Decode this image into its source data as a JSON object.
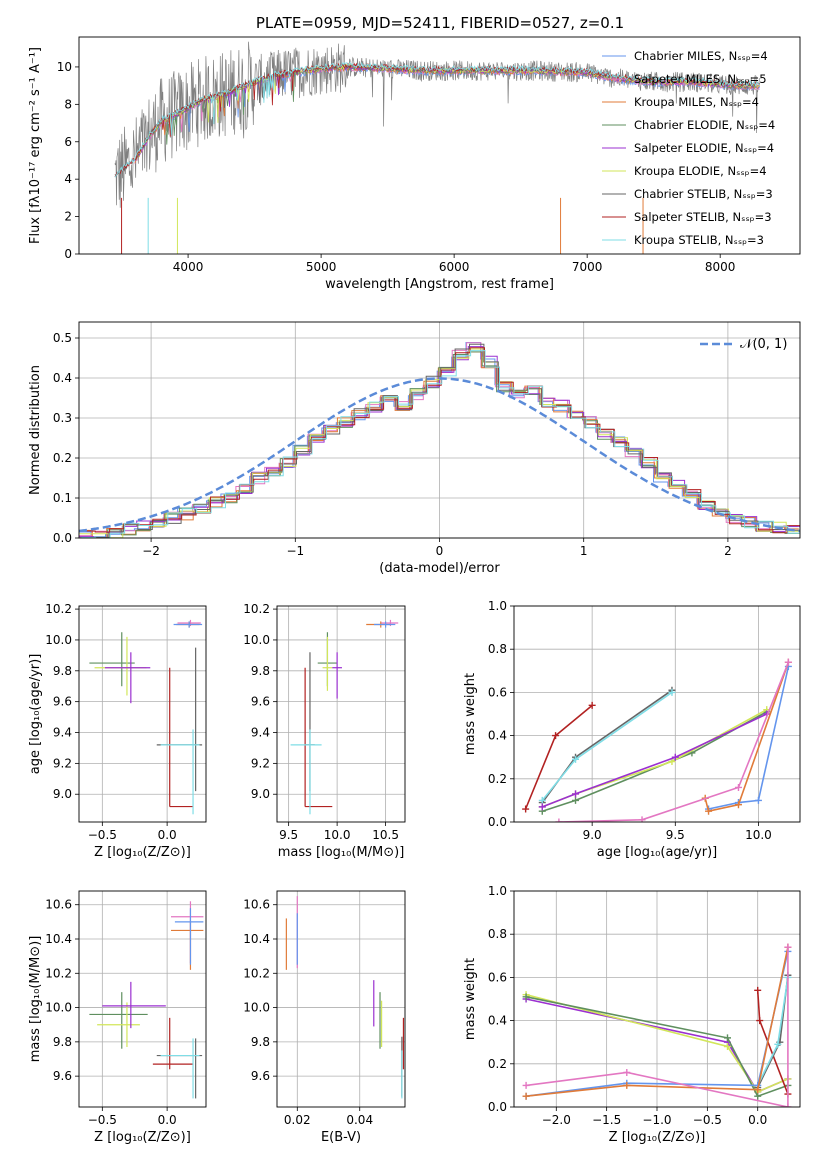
{
  "colors": {
    "Chabrier MILES": "#6495ed",
    "Salpeter MILES": "#e377c2",
    "Kroupa MILES": "#e07b39",
    "Chabrier ELODIE": "#5f8f5f",
    "Salpeter ELODIE": "#9b30d0",
    "Kroupa ELODIE": "#d2e65a",
    "Chabrier STELIB": "#666666",
    "Salpeter STELIB": "#b22222",
    "Kroupa STELIB": "#7fdde6",
    "data": "#808080",
    "normal": "#5b8bd8"
  },
  "chart_data": [
    {
      "id": "spectrum",
      "type": "line",
      "title": "PLATE=0959, MJD=52411, FIBERID=0527, z=0.1",
      "xlabel": "wavelength [Angstrom, rest frame]",
      "ylabel": "Flux [fλ10⁻¹⁷ erg cm⁻² s⁻¹ A⁻¹]",
      "xlim": [
        3180,
        8600
      ],
      "ylim": [
        0,
        11.6
      ],
      "xticks": [
        4000,
        5000,
        6000,
        7000,
        8000
      ],
      "yticks": [
        0,
        2,
        4,
        6,
        8,
        10
      ],
      "grid": false,
      "legend_position": "top-right",
      "legend": [
        "Chabrier MILES, Nₛₛₚ=4",
        "Salpeter MILES, Nₛₛₚ=5",
        "Kroupa MILES, Nₛₛₚ=4",
        "Chabrier ELODIE, Nₛₛₚ=4",
        "Salpeter ELODIE, Nₛₛₚ=4",
        "Kroupa ELODIE, Nₛₛₚ=4",
        "Chabrier STELIB, Nₛₛₚ=3",
        "Salpeter STELIB, Nₛₛₚ=3",
        "Kroupa STELIB, Nₛₛₚ=3"
      ],
      "continuum": [
        [
          3450,
          4.1
        ],
        [
          3600,
          5.0
        ],
        [
          3700,
          6.2
        ],
        [
          3800,
          7.1
        ],
        [
          3950,
          7.6
        ],
        [
          4100,
          8.2
        ],
        [
          4300,
          8.6
        ],
        [
          4500,
          9.2
        ],
        [
          4700,
          9.6
        ],
        [
          5000,
          9.9
        ],
        [
          5200,
          10.0
        ],
        [
          5500,
          9.9
        ],
        [
          5800,
          9.8
        ],
        [
          6000,
          9.8
        ],
        [
          6300,
          9.8
        ],
        [
          6600,
          9.8
        ],
        [
          7000,
          9.7
        ],
        [
          7200,
          9.4
        ],
        [
          7500,
          9.2
        ],
        [
          7800,
          9.2
        ],
        [
          8100,
          9.0
        ],
        [
          8300,
          9.0
        ]
      ]
    },
    {
      "id": "residuals",
      "type": "bar",
      "xlabel": "(data-model)/error",
      "ylabel": "Normed distribution",
      "xlim": [
        -2.5,
        2.5
      ],
      "ylim": [
        0,
        0.54
      ],
      "xticks": [
        -2,
        -1,
        0,
        1,
        2
      ],
      "yticks": [
        0.0,
        0.1,
        0.2,
        0.3,
        0.4,
        0.5
      ],
      "grid": true,
      "legend_position": "top-right",
      "legend": [
        "𝒩(0, 1)"
      ],
      "bin_width": 0.1,
      "bins_start": -2.5,
      "histogram": [
        0.005,
        0.01,
        0.015,
        0.022,
        0.03,
        0.04,
        0.05,
        0.06,
        0.075,
        0.09,
        0.1,
        0.12,
        0.15,
        0.17,
        0.19,
        0.22,
        0.25,
        0.27,
        0.29,
        0.31,
        0.33,
        0.35,
        0.33,
        0.36,
        0.39,
        0.42,
        0.46,
        0.48,
        0.44,
        0.38,
        0.36,
        0.37,
        0.34,
        0.33,
        0.31,
        0.29,
        0.26,
        0.24,
        0.21,
        0.19,
        0.15,
        0.13,
        0.11,
        0.08,
        0.06,
        0.05,
        0.04,
        0.03,
        0.025,
        0.02
      ]
    },
    {
      "id": "age_vs_Z",
      "type": "scatter",
      "xlabel": "Z [log₁₀(Z/Z⊙)]",
      "ylabel": "age  [log₁₀(age/yr)]",
      "xlim": [
        -0.68,
        0.3
      ],
      "ylim": [
        8.82,
        10.22
      ],
      "xticks": [
        -0.5,
        0.0
      ],
      "yticks": [
        9.0,
        9.2,
        9.4,
        9.6,
        9.8,
        10.0,
        10.2
      ],
      "grid": true,
      "points": [
        {
          "model": "Chabrier ELODIE",
          "x": -0.35,
          "y": 9.85,
          "xerr": [
            0.25,
            0.1
          ],
          "yerr": [
            0.15,
            0.2
          ]
        },
        {
          "model": "Kroupa ELODIE",
          "x": -0.31,
          "y": 9.82,
          "xerr": [
            0.25,
            0.15
          ],
          "yerr": [
            0.18,
            0.2
          ]
        },
        {
          "model": "Salpeter ELODIE",
          "x": -0.28,
          "y": 9.82,
          "xerr": [
            0.2,
            0.15
          ],
          "yerr": [
            0.23,
            0.1
          ]
        },
        {
          "model": "Salpeter STELIB",
          "x": 0.02,
          "y": 8.92,
          "xerr": [
            0.0,
            0.18
          ],
          "yerr": [
            0.0,
            0.9
          ]
        },
        {
          "model": "Chabrier STELIB",
          "x": 0.22,
          "y": 9.32,
          "xerr": [
            0.3,
            0.05
          ],
          "yerr": [
            0.3,
            0.63
          ]
        },
        {
          "model": "Kroupa STELIB",
          "x": 0.2,
          "y": 9.32,
          "xerr": [
            0.25,
            0.05
          ],
          "yerr": [
            0.45,
            0.1
          ]
        },
        {
          "model": "Salpeter MILES",
          "x": 0.18,
          "y": 10.11,
          "xerr": [
            0.1,
            0.08
          ],
          "yerr": [
            0.02,
            0.02
          ]
        },
        {
          "model": "Kroupa MILES",
          "x": 0.17,
          "y": 10.1,
          "xerr": [
            0.1,
            0.08
          ],
          "yerr": [
            0.02,
            0.02
          ]
        },
        {
          "model": "Chabrier MILES",
          "x": 0.17,
          "y": 10.1,
          "xerr": [
            0.12,
            0.1
          ],
          "yerr": [
            0.02,
            0.02
          ]
        }
      ]
    },
    {
      "id": "age_vs_mass",
      "type": "scatter",
      "xlabel": "mass [log₁₀(M/M⊙)]",
      "xlim": [
        9.38,
        10.7
      ],
      "ylim": [
        8.82,
        10.22
      ],
      "xticks": [
        9.5,
        10.0,
        10.5
      ],
      "yticks": [
        9.0,
        9.2,
        9.4,
        9.6,
        9.8,
        10.0,
        10.2
      ],
      "grid": true,
      "points": [
        {
          "model": "Chabrier ELODIE",
          "x": 9.9,
          "y": 9.85,
          "xerr": [
            0.1,
            0.1
          ],
          "yerr": [
            0.15,
            0.2
          ]
        },
        {
          "model": "Kroupa ELODIE",
          "x": 9.9,
          "y": 9.82,
          "xerr": [
            0.05,
            0.05
          ],
          "yerr": [
            0.15,
            0.2
          ]
        },
        {
          "model": "Salpeter ELODIE",
          "x": 10.0,
          "y": 9.82,
          "xerr": [
            0.05,
            0.05
          ],
          "yerr": [
            0.2,
            0.1
          ]
        },
        {
          "model": "Salpeter STELIB",
          "x": 9.67,
          "y": 8.92,
          "xerr": [
            0.0,
            0.28
          ],
          "yerr": [
            0.0,
            0.9
          ]
        },
        {
          "model": "Chabrier STELIB",
          "x": 9.72,
          "y": 9.32,
          "xerr": [
            0.05,
            0.05
          ],
          "yerr": [
            0.3,
            0.6
          ]
        },
        {
          "model": "Kroupa STELIB",
          "x": 9.72,
          "y": 9.32,
          "xerr": [
            0.2,
            0.12
          ],
          "yerr": [
            0.45,
            0.1
          ]
        },
        {
          "model": "Salpeter MILES",
          "x": 10.55,
          "y": 10.11,
          "xerr": [
            0.1,
            0.08
          ],
          "yerr": [
            0.02,
            0.02
          ]
        },
        {
          "model": "Kroupa MILES",
          "x": 10.45,
          "y": 10.1,
          "xerr": [
            0.15,
            0.1
          ],
          "yerr": [
            0.02,
            0.02
          ]
        },
        {
          "model": "Chabrier MILES",
          "x": 10.5,
          "y": 10.1,
          "xerr": [
            0.12,
            0.1
          ],
          "yerr": [
            0.02,
            0.02
          ]
        }
      ]
    },
    {
      "id": "massweight_vs_age",
      "type": "line",
      "xlabel": "age  [log₁₀(age/yr)]",
      "ylabel": "mass weight",
      "xlim": [
        8.53,
        10.25
      ],
      "ylim": [
        0,
        1.0
      ],
      "xticks": [
        9.0,
        9.5,
        10.0
      ],
      "yticks": [
        0.0,
        0.2,
        0.4,
        0.6,
        0.8,
        1.0
      ],
      "grid": true,
      "series": [
        {
          "model": "Salpeter STELIB",
          "x": [
            8.6,
            8.78,
            9.0
          ],
          "y": [
            0.06,
            0.4,
            0.54
          ]
        },
        {
          "model": "Chabrier STELIB",
          "x": [
            8.7,
            8.9,
            9.48
          ],
          "y": [
            0.09,
            0.3,
            0.61
          ]
        },
        {
          "model": "Kroupa STELIB",
          "x": [
            8.7,
            8.9,
            9.48
          ],
          "y": [
            0.1,
            0.29,
            0.6
          ]
        },
        {
          "model": "Chabrier ELODIE",
          "x": [
            8.7,
            8.9,
            9.6,
            10.05
          ],
          "y": [
            0.05,
            0.1,
            0.32,
            0.51
          ]
        },
        {
          "model": "Kroupa ELODIE",
          "x": [
            8.7,
            8.9,
            9.48,
            10.05
          ],
          "y": [
            0.07,
            0.13,
            0.28,
            0.52
          ]
        },
        {
          "model": "Salpeter ELODIE",
          "x": [
            8.7,
            8.9,
            9.5,
            10.05
          ],
          "y": [
            0.07,
            0.13,
            0.3,
            0.5
          ]
        },
        {
          "model": "Chabrier MILES",
          "x": [
            9.7,
            9.88,
            10.0,
            10.18
          ],
          "y": [
            0.06,
            0.09,
            0.1,
            0.72
          ]
        },
        {
          "model": "Kroupa MILES",
          "x": [
            9.68,
            9.7,
            9.88,
            10.18
          ],
          "y": [
            0.11,
            0.05,
            0.08,
            0.74
          ]
        },
        {
          "model": "Salpeter MILES",
          "x": [
            8.8,
            9.3,
            9.88,
            10.18
          ],
          "y": [
            0.0,
            0.01,
            0.16,
            0.74
          ]
        }
      ]
    },
    {
      "id": "mass_vs_Z",
      "type": "scatter",
      "xlabel": "Z [log₁₀(Z/Z⊙)]",
      "ylabel": "mass [log₁₀(M/M⊙)]",
      "xlim": [
        -0.68,
        0.3
      ],
      "ylim": [
        9.42,
        10.68
      ],
      "xticks": [
        -0.5,
        0.0
      ],
      "yticks": [
        9.6,
        9.8,
        10.0,
        10.2,
        10.4,
        10.6
      ],
      "grid": true,
      "points": [
        {
          "model": "Chabrier ELODIE",
          "x": -0.35,
          "y": 9.96,
          "xerr": [
            0.25,
            0.2
          ],
          "yerr": [
            0.2,
            0.13
          ]
        },
        {
          "model": "Kroupa ELODIE",
          "x": -0.31,
          "y": 9.9,
          "xerr": [
            0.23,
            0.1
          ],
          "yerr": [
            0.13,
            0.13
          ]
        },
        {
          "model": "Salpeter ELODIE",
          "x": -0.28,
          "y": 10.01,
          "xerr": [
            0.22,
            0.27
          ],
          "yerr": [
            0.13,
            0.14
          ]
        },
        {
          "model": "Salpeter STELIB",
          "x": 0.02,
          "y": 9.67,
          "xerr": [
            0.13,
            0.18
          ],
          "yerr": [
            0.03,
            0.27
          ]
        },
        {
          "model": "Chabrier STELIB",
          "x": 0.22,
          "y": 9.72,
          "xerr": [
            0.3,
            0.05
          ],
          "yerr": [
            0.25,
            0.1
          ]
        },
        {
          "model": "Kroupa STELIB",
          "x": 0.2,
          "y": 9.72,
          "xerr": [
            0.25,
            0.05
          ],
          "yerr": [
            0.25,
            0.1
          ]
        },
        {
          "model": "Salpeter MILES",
          "x": 0.18,
          "y": 10.53,
          "xerr": [
            0.15,
            0.1
          ],
          "yerr": [
            0.27,
            0.09
          ]
        },
        {
          "model": "Kroupa MILES",
          "x": 0.18,
          "y": 10.45,
          "xerr": [
            0.15,
            0.1
          ],
          "yerr": [
            0.23,
            0.05
          ]
        },
        {
          "model": "Chabrier MILES",
          "x": 0.18,
          "y": 10.5,
          "xerr": [
            0.12,
            0.1
          ],
          "yerr": [
            0.25,
            0.08
          ]
        }
      ]
    },
    {
      "id": "mass_vs_ebv",
      "type": "scatter",
      "xlabel": "E(B-V)",
      "xlim": [
        0.0135,
        0.0545
      ],
      "ylim": [
        9.42,
        10.68
      ],
      "xticks": [
        0.02,
        0.04
      ],
      "yticks": [
        9.6,
        9.8,
        10.0,
        10.2,
        10.4,
        10.6
      ],
      "grid": true,
      "points": [
        {
          "model": "Kroupa MILES",
          "x": 0.0165,
          "y": 10.36,
          "yerr": [
            0.14,
            0.16
          ]
        },
        {
          "model": "Salpeter MILES",
          "x": 0.02,
          "y": 10.5,
          "yerr": [
            0.27,
            0.15
          ]
        },
        {
          "model": "Chabrier MILES",
          "x": 0.02,
          "y": 10.45,
          "yerr": [
            0.2,
            0.1
          ]
        },
        {
          "model": "Salpeter ELODIE",
          "x": 0.0445,
          "y": 10.01,
          "yerr": [
            0.12,
            0.15
          ]
        },
        {
          "model": "Chabrier ELODIE",
          "x": 0.0465,
          "y": 9.96,
          "yerr": [
            0.2,
            0.13
          ]
        },
        {
          "model": "Kroupa ELODIE",
          "x": 0.047,
          "y": 9.9,
          "yerr": [
            0.13,
            0.14
          ]
        },
        {
          "model": "Salpeter STELIB",
          "x": 0.054,
          "y": 9.72,
          "yerr": [
            0.08,
            0.22
          ]
        },
        {
          "model": "Chabrier STELIB",
          "x": 0.0535,
          "y": 9.68,
          "yerr": [
            0.2,
            0.15
          ]
        },
        {
          "model": "Kroupa STELIB",
          "x": 0.0535,
          "y": 9.65,
          "yerr": [
            0.18,
            0.1
          ]
        }
      ]
    },
    {
      "id": "massweight_vs_Z",
      "type": "line",
      "xlabel": "Z [log₁₀(Z/Z⊙)]",
      "ylabel": "mass weight",
      "xlim": [
        -2.42,
        0.42
      ],
      "ylim": [
        0,
        1.0
      ],
      "xticks": [
        -2.0,
        -1.5,
        -1.0,
        -0.5,
        0.0
      ],
      "yticks": [
        0.0,
        0.2,
        0.4,
        0.6,
        0.8,
        1.0
      ],
      "grid": true,
      "series": [
        {
          "model": "Salpeter ELODIE",
          "x": [
            -2.3,
            -0.3,
            0.0,
            0.3
          ],
          "y": [
            0.5,
            0.3,
            0.07,
            0.13
          ]
        },
        {
          "model": "Kroupa ELODIE",
          "x": [
            -2.3,
            -0.3,
            0.0,
            0.3
          ],
          "y": [
            0.52,
            0.28,
            0.07,
            0.13
          ]
        },
        {
          "model": "Chabrier ELODIE",
          "x": [
            -2.3,
            -0.3,
            0.0,
            0.3
          ],
          "y": [
            0.51,
            0.32,
            0.05,
            0.1
          ]
        },
        {
          "model": "Salpeter STELIB",
          "x": [
            0.0,
            0.02,
            0.3
          ],
          "y": [
            0.54,
            0.4,
            0.06
          ]
        },
        {
          "model": "Chabrier STELIB",
          "x": [
            0.0,
            0.22,
            0.3
          ],
          "y": [
            0.09,
            0.3,
            0.61
          ]
        },
        {
          "model": "Kroupa STELIB",
          "x": [
            0.0,
            0.2,
            0.3
          ],
          "y": [
            0.1,
            0.29,
            0.6
          ]
        },
        {
          "model": "Chabrier MILES",
          "x": [
            -2.3,
            -1.3,
            0.0,
            0.3
          ],
          "y": [
            0.05,
            0.11,
            0.1,
            0.72
          ]
        },
        {
          "model": "Kroupa MILES",
          "x": [
            -2.3,
            -1.3,
            0.0,
            0.3
          ],
          "y": [
            0.05,
            0.1,
            0.08,
            0.74
          ]
        },
        {
          "model": "Salpeter MILES",
          "x": [
            -2.3,
            -1.3,
            0.3,
            0.3
          ],
          "y": [
            0.1,
            0.16,
            0.0,
            0.74
          ]
        }
      ]
    }
  ]
}
